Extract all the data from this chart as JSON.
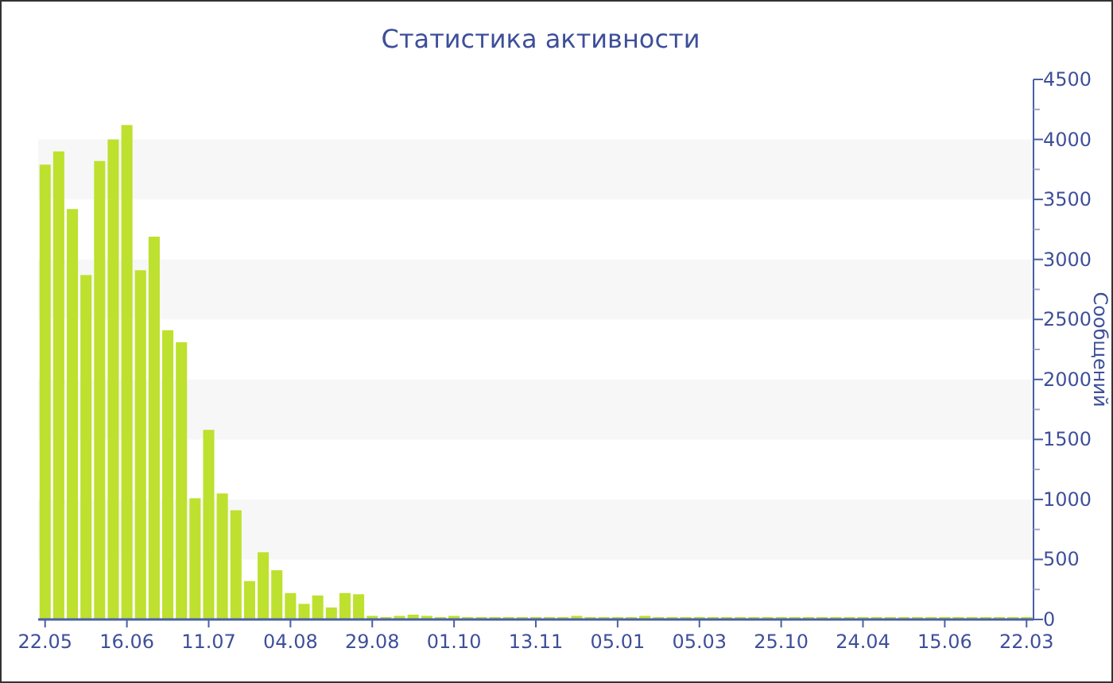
{
  "chart_data": {
    "type": "bar",
    "title": "Статистика активности",
    "ylabel": "Сообщений",
    "categories": [
      "22.05",
      null,
      null,
      null,
      null,
      null,
      "16.06",
      null,
      null,
      null,
      null,
      null,
      "11.07",
      null,
      null,
      null,
      null,
      null,
      "04.08",
      null,
      null,
      null,
      null,
      null,
      "29.08",
      null,
      null,
      null,
      null,
      null,
      "01.10",
      null,
      null,
      null,
      null,
      null,
      "13.11",
      null,
      null,
      null,
      null,
      null,
      "05.01",
      null,
      null,
      null,
      null,
      null,
      "05.03",
      null,
      null,
      null,
      null,
      null,
      "25.10",
      null,
      null,
      null,
      null,
      null,
      "24.04",
      null,
      null,
      null,
      null,
      null,
      "15.06",
      null,
      null,
      null,
      null,
      null,
      "22.03"
    ],
    "values": [
      3790,
      3900,
      3420,
      2870,
      3820,
      4000,
      4120,
      2910,
      3190,
      2410,
      2310,
      1010,
      1580,
      1050,
      910,
      320,
      560,
      410,
      220,
      130,
      200,
      100,
      220,
      210,
      30,
      20,
      30,
      40,
      30,
      20,
      30,
      20,
      20,
      20,
      20,
      20,
      20,
      20,
      20,
      30,
      20,
      20,
      20,
      20,
      30,
      20,
      20,
      20,
      20,
      20,
      20,
      20,
      20,
      20,
      20,
      20,
      20,
      20,
      20,
      20,
      20,
      20,
      20,
      20,
      20,
      20,
      20,
      20,
      20,
      20,
      20,
      20,
      20
    ],
    "color": "#bde12e",
    "ylim": [
      0,
      4500
    ],
    "yticks": [
      0,
      500,
      1000,
      1500,
      2000,
      2500,
      3000,
      3500,
      4000,
      4500
    ],
    "bands": [
      {
        "axis": "y",
        "from": 500,
        "to": 1000,
        "color": "#f7f7f7"
      },
      {
        "axis": "y",
        "from": 1500,
        "to": 2000,
        "color": "#f7f7f7"
      },
      {
        "axis": "y",
        "from": 2500,
        "to": 3000,
        "color": "#f7f7f7"
      },
      {
        "axis": "y",
        "from": 3500,
        "to": 4000,
        "color": "#f7f7f7"
      }
    ]
  }
}
